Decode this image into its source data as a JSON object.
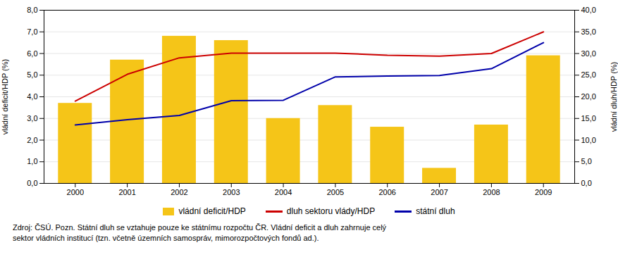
{
  "chart_data": {
    "type": "bar",
    "x": [
      2000,
      2001,
      2002,
      2003,
      2004,
      2005,
      2006,
      2007,
      2008,
      2009
    ],
    "xlim": [
      1999.4,
      2009.6
    ],
    "xticks": [
      2000,
      2001,
      2002,
      2003,
      2004,
      2005,
      2006,
      2007,
      2008,
      2009
    ],
    "series": [
      {
        "name": "vládní deficit/HDP",
        "type": "bar",
        "color": "#F5C518",
        "values": [
          3.7,
          5.7,
          6.8,
          6.6,
          3.0,
          3.6,
          2.6,
          0.7,
          2.7,
          5.9
        ]
      },
      {
        "name": "dluh sektoru vlády/HDP",
        "type": "line",
        "axis": "y2",
        "color": "#CC0000",
        "values": [
          19.0,
          25.2,
          29.0,
          30.1,
          30.1,
          30.1,
          29.6,
          29.4,
          30.0,
          35.0
        ]
      },
      {
        "name": "státní dluh",
        "type": "line",
        "axis": "y2",
        "color": "#0000AA",
        "values": [
          13.5,
          14.7,
          15.7,
          19.1,
          19.2,
          24.6,
          24.8,
          24.9,
          26.5,
          32.5
        ]
      }
    ],
    "ylabel": "vládní deficit/HDP (%)",
    "ylim": [
      0,
      8
    ],
    "yticks": [
      {
        "value": 0.0,
        "label": "0,0"
      },
      {
        "value": 1.0,
        "label": "1,0"
      },
      {
        "value": 2.0,
        "label": "2,0"
      },
      {
        "value": 3.0,
        "label": "3,0"
      },
      {
        "value": 4.0,
        "label": "4,0"
      },
      {
        "value": 5.0,
        "label": "5,0"
      },
      {
        "value": 6.0,
        "label": "6,0"
      },
      {
        "value": 7.0,
        "label": "7,0"
      },
      {
        "value": 8.0,
        "label": "8,0"
      }
    ],
    "y2label": "vládní dluh/HDP (%)",
    "y2lim": [
      0,
      40
    ],
    "y2ticks": [
      {
        "value": 0,
        "label": "0,0"
      },
      {
        "value": 5,
        "label": "5,0"
      },
      {
        "value": 10,
        "label": "10,0"
      },
      {
        "value": 15,
        "label": "15,0"
      },
      {
        "value": 20,
        "label": "20,0"
      },
      {
        "value": 25,
        "label": "25,0"
      },
      {
        "value": 30,
        "label": "30,0"
      },
      {
        "value": 35,
        "label": "35,0"
      },
      {
        "value": 40,
        "label": "40,0"
      }
    ],
    "grid": true,
    "legend": "bottom",
    "annotations": [
      "Zdroj: ČSÚ. Pozn. Státní dluh se vztahuje pouze ke státnímu rozpočtu ČR. Vládní deficit a dluh zahrnuje celý",
      "sektor vládních institucí (tzn. včetně územních samospráv, mimorozpočtových fondů ad.)."
    ]
  }
}
